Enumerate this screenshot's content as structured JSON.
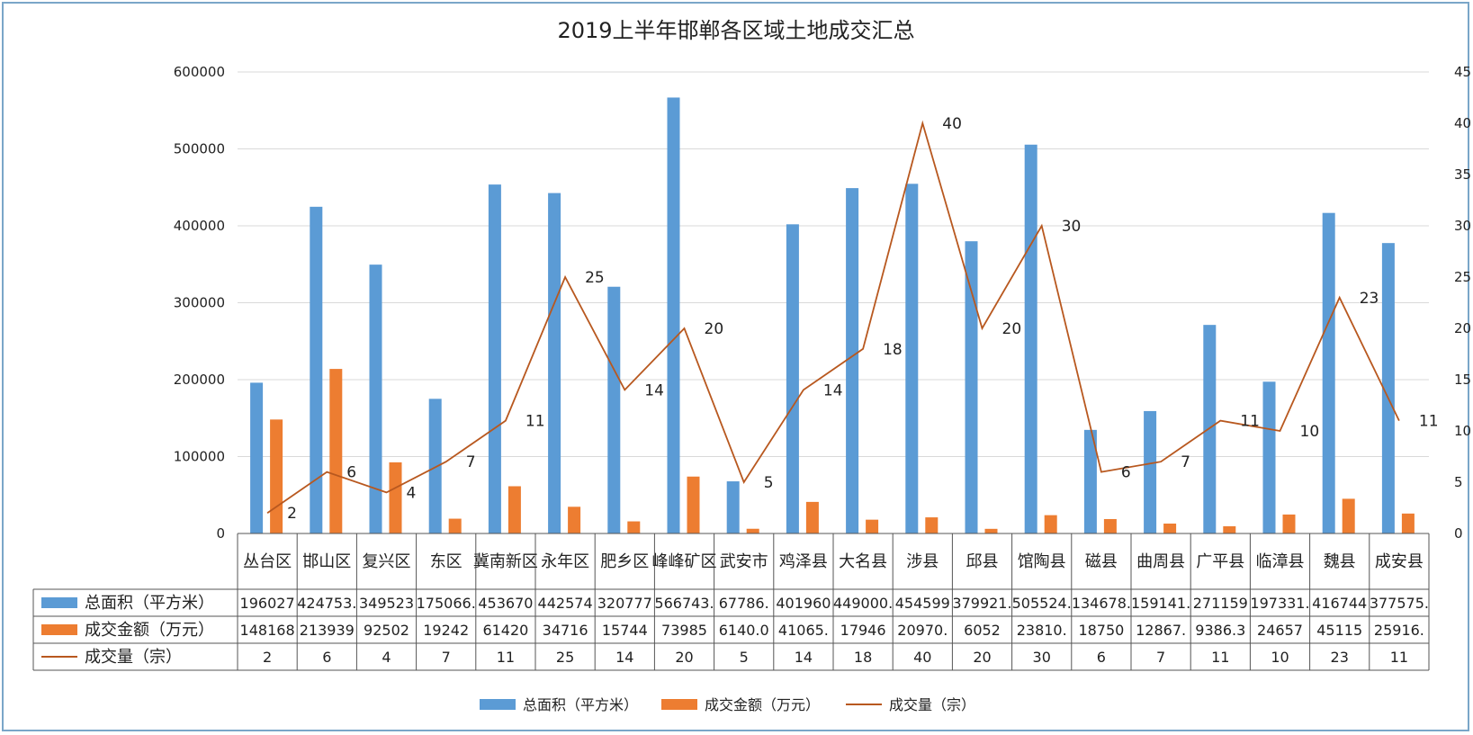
{
  "chart_data": {
    "type": "bar",
    "title": "2019上半年邯郸各区域土地成交汇总",
    "categories": [
      "丛台区",
      "邯山区",
      "复兴区",
      "东区",
      "冀南新区",
      "永年区",
      "肥乡区",
      "峰峰矿区",
      "武安市",
      "鸡泽县",
      "大名县",
      "涉县",
      "邱县",
      "馆陶县",
      "磁县",
      "曲周县",
      "广平县",
      "临漳县",
      "魏县",
      "成安县"
    ],
    "series": [
      {
        "name": "总面积（平方米）",
        "type": "bar",
        "axis": "left",
        "color": "#5b9bd5",
        "values": [
          196027,
          424753,
          349523,
          175066,
          453670,
          442574,
          320777,
          566743,
          67786,
          401960,
          449000,
          454599,
          379921,
          505524,
          134678,
          159141,
          271159,
          197331,
          416744,
          377575
        ],
        "table_labels": [
          "196027",
          "424753.",
          "349523",
          "175066.",
          "453670",
          "442574",
          "320777",
          "566743.",
          "67786.",
          "401960",
          "449000.",
          "454599",
          "379921.",
          "505524.",
          "134678.",
          "159141.",
          "271159",
          "197331.",
          "416744",
          "377575."
        ]
      },
      {
        "name": "成交金额（万元）",
        "type": "bar",
        "axis": "left",
        "color": "#ed7d31",
        "values": [
          148168,
          213939,
          92502,
          19242,
          61420,
          34716,
          15744,
          73985,
          6140,
          41065,
          17946,
          20970,
          6052,
          23810,
          18750,
          12867,
          9386.3,
          24657,
          45115,
          25916
        ],
        "table_labels": [
          "148168",
          "213939",
          "92502",
          "19242",
          "61420",
          "34716",
          "15744",
          "73985",
          "6140.0",
          "41065.",
          "17946",
          "20970.",
          "6052",
          "23810.",
          "18750",
          "12867.",
          "9386.3",
          "24657",
          "45115",
          "25916."
        ]
      },
      {
        "name": "成交量（宗）",
        "type": "line",
        "axis": "right",
        "color": "#b8581f",
        "values": [
          2,
          6,
          4,
          7,
          11,
          25,
          14,
          20,
          5,
          14,
          18,
          40,
          20,
          30,
          6,
          7,
          11,
          10,
          23,
          11
        ],
        "table_labels": [
          "2",
          "6",
          "4",
          "7",
          "11",
          "25",
          "14",
          "20",
          "5",
          "14",
          "18",
          "40",
          "20",
          "30",
          "6",
          "7",
          "11",
          "10",
          "23",
          "11"
        ]
      }
    ],
    "y_left": {
      "min": 0,
      "max": 600000,
      "step": 100000,
      "ticks": [
        "0",
        "100000",
        "200000",
        "300000",
        "400000",
        "500000",
        "600000"
      ]
    },
    "y_right": {
      "min": 0,
      "max": 45,
      "step": 5,
      "ticks": [
        "0",
        "5",
        "10",
        "15",
        "20",
        "25",
        "30",
        "35",
        "40",
        "45"
      ]
    },
    "grid": true,
    "legend": "bottom",
    "data_table": true
  }
}
